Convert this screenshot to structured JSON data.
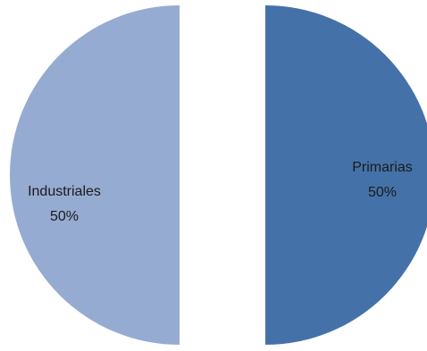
{
  "chart_data": {
    "type": "pie",
    "exploded": true,
    "slices": [
      {
        "label": "Primarias",
        "value": 50,
        "percent_label": "50%",
        "color": "#4472a8"
      },
      {
        "label": "Industriales",
        "value": 50,
        "percent_label": "50%",
        "color": "#96abd2"
      }
    ]
  }
}
